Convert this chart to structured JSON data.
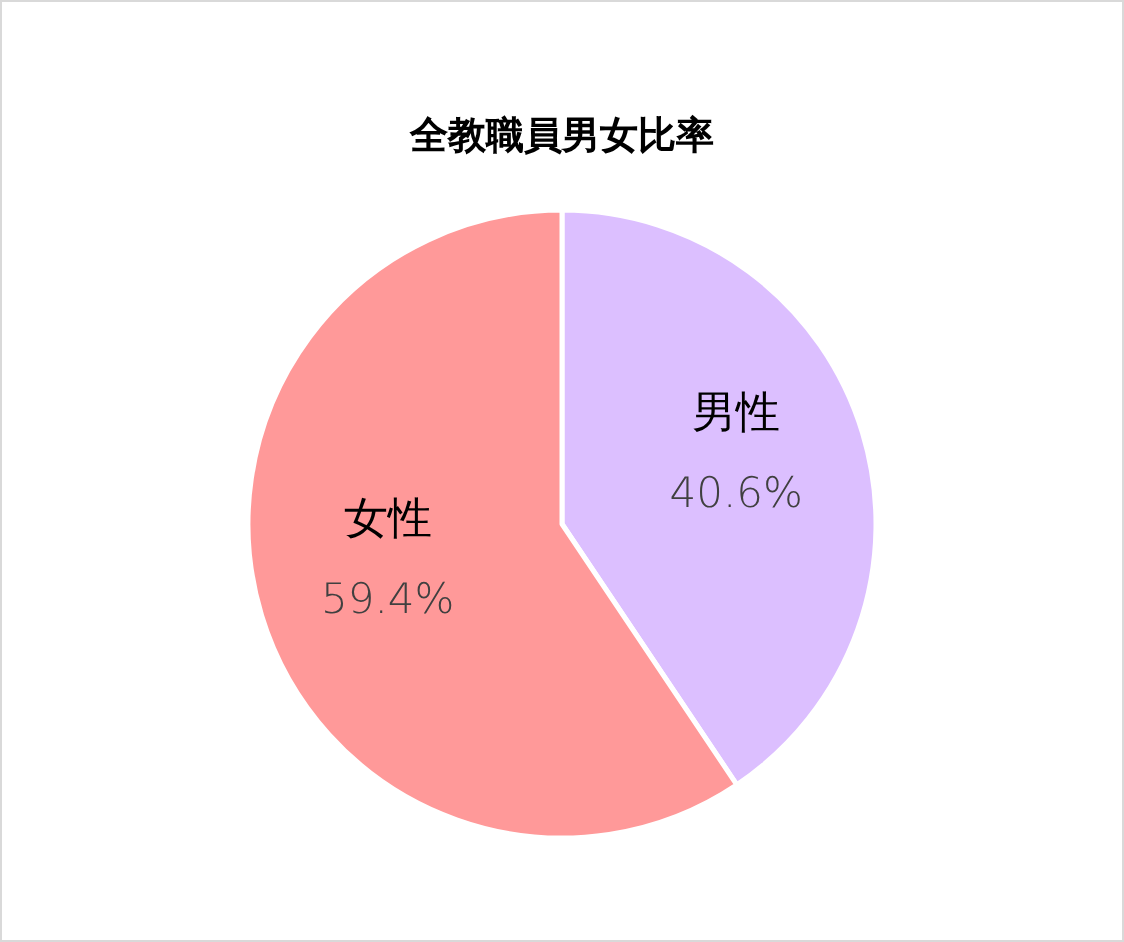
{
  "chart_data": {
    "type": "pie",
    "title": "全教職員男女比率",
    "categories": [
      "男性",
      "女性"
    ],
    "values": [
      40.6,
      59.4
    ],
    "colors": [
      "#dcbfff",
      "#ff9999"
    ],
    "value_labels": [
      "40.6%",
      "59.4%"
    ]
  }
}
